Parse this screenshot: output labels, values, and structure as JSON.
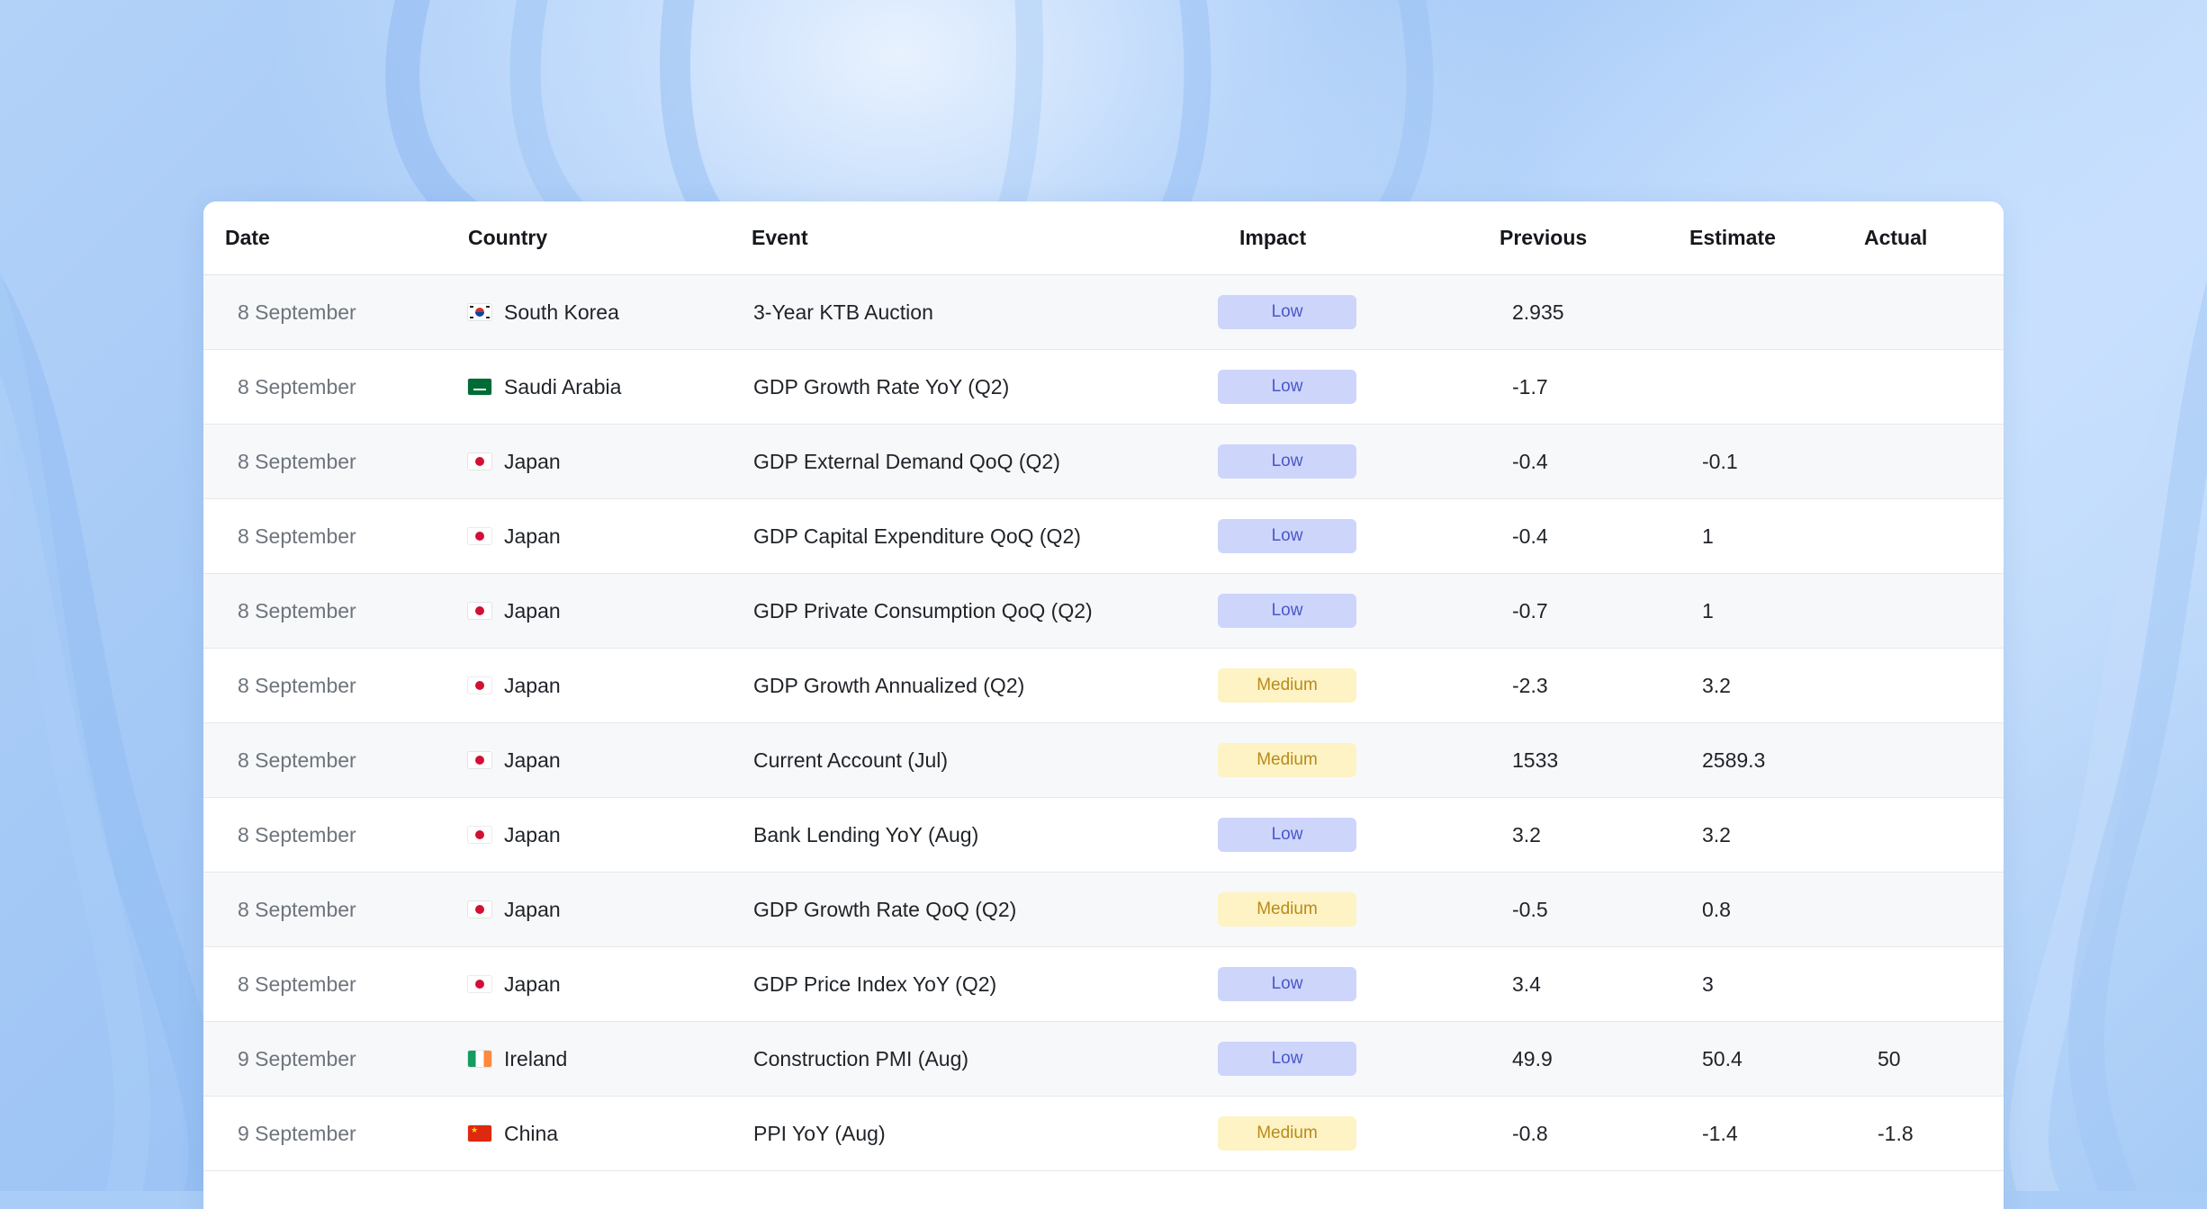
{
  "columns": {
    "date": "Date",
    "country": "Country",
    "event": "Event",
    "impact": "Impact",
    "previous": "Previous",
    "estimate": "Estimate",
    "actual": "Actual"
  },
  "rows": [
    {
      "date": "8 September",
      "country": "South Korea",
      "flag": "kr",
      "event": "3-Year KTB Auction",
      "impact": "Low",
      "previous": "2.935",
      "estimate": "",
      "actual": ""
    },
    {
      "date": "8 September",
      "country": "Saudi Arabia",
      "flag": "sa",
      "event": "GDP Growth Rate YoY (Q2)",
      "impact": "Low",
      "previous": "-1.7",
      "estimate": "",
      "actual": ""
    },
    {
      "date": "8 September",
      "country": "Japan",
      "flag": "jp",
      "event": "GDP External Demand QoQ (Q2)",
      "impact": "Low",
      "previous": "-0.4",
      "estimate": "-0.1",
      "actual": ""
    },
    {
      "date": "8 September",
      "country": "Japan",
      "flag": "jp",
      "event": "GDP Capital Expenditure QoQ (Q2)",
      "impact": "Low",
      "previous": "-0.4",
      "estimate": "1",
      "actual": ""
    },
    {
      "date": "8 September",
      "country": "Japan",
      "flag": "jp",
      "event": "GDP Private Consumption QoQ (Q2)",
      "impact": "Low",
      "previous": "-0.7",
      "estimate": "1",
      "actual": ""
    },
    {
      "date": "8 September",
      "country": "Japan",
      "flag": "jp",
      "event": "GDP Growth Annualized (Q2)",
      "impact": "Medium",
      "previous": "-2.3",
      "estimate": "3.2",
      "actual": ""
    },
    {
      "date": "8 September",
      "country": "Japan",
      "flag": "jp",
      "event": "Current Account (Jul)",
      "impact": "Medium",
      "previous": "1533",
      "estimate": "2589.3",
      "actual": ""
    },
    {
      "date": "8 September",
      "country": "Japan",
      "flag": "jp",
      "event": "Bank Lending YoY (Aug)",
      "impact": "Low",
      "previous": "3.2",
      "estimate": "3.2",
      "actual": ""
    },
    {
      "date": "8 September",
      "country": "Japan",
      "flag": "jp",
      "event": "GDP Growth Rate QoQ (Q2)",
      "impact": "Medium",
      "previous": "-0.5",
      "estimate": "0.8",
      "actual": ""
    },
    {
      "date": "8 September",
      "country": "Japan",
      "flag": "jp",
      "event": "GDP Price Index YoY (Q2)",
      "impact": "Low",
      "previous": "3.4",
      "estimate": "3",
      "actual": ""
    },
    {
      "date": "9 September",
      "country": "Ireland",
      "flag": "ie",
      "event": "Construction PMI (Aug)",
      "impact": "Low",
      "previous": "49.9",
      "estimate": "50.4",
      "actual": "50"
    },
    {
      "date": "9 September",
      "country": "China",
      "flag": "cn",
      "event": "PPI YoY (Aug)",
      "impact": "Medium",
      "previous": "-0.8",
      "estimate": "-1.4",
      "actual": "-1.8"
    }
  ],
  "colors": {
    "low_bg": "#cdd5fb",
    "low_text": "#4a56c9",
    "medium_bg": "#fdf3c4",
    "medium_text": "#b98a1c"
  }
}
